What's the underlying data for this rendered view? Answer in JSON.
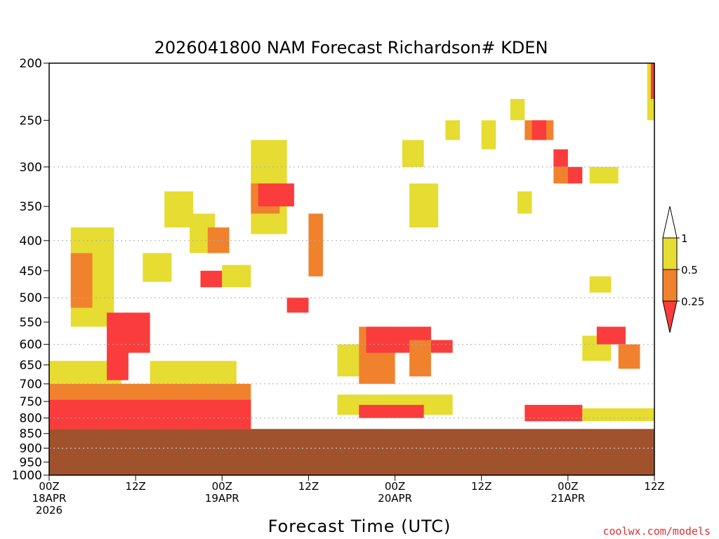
{
  "chart_data": {
    "type": "heatmap",
    "title": "2026041800 NAM Forecast Richardson# KDEN",
    "xlabel": "Forecast Time (UTC)",
    "ylabel": "",
    "y_scale": "log-pressure",
    "y_inverted": true,
    "ylim": [
      1000,
      200
    ],
    "xlim_hours": [
      0,
      84
    ],
    "grid": "dotted horizontal at 300, 400, 500, 600, 700, 800, 900, 1000",
    "legend_placement": "right",
    "credit": "coolwx.com/models",
    "y_ticks": [
      "200",
      "250",
      "300",
      "350",
      "400",
      "450",
      "500",
      "550",
      "600",
      "650",
      "700",
      "750",
      "800",
      "850",
      "900",
      "950",
      "1000"
    ],
    "x_ticks": [
      {
        "hour": 0,
        "lines": [
          "00Z",
          "18APR",
          "2026"
        ]
      },
      {
        "hour": 12,
        "lines": [
          "12Z"
        ]
      },
      {
        "hour": 24,
        "lines": [
          "00Z",
          "19APR"
        ]
      },
      {
        "hour": 36,
        "lines": [
          "12Z"
        ]
      },
      {
        "hour": 48,
        "lines": [
          "00Z",
          "20APR"
        ]
      },
      {
        "hour": 60,
        "lines": [
          "12Z"
        ]
      },
      {
        "hour": 72,
        "lines": [
          "00Z",
          "21APR"
        ]
      },
      {
        "hour": 84,
        "lines": [
          "12Z"
        ]
      }
    ],
    "legend": {
      "levels": [
        "1",
        "0.5",
        "0.25"
      ],
      "bins": [
        {
          "range": "0.5-1",
          "color": "#e6dc32"
        },
        {
          "range": "0.25-0.5",
          "color": "#f0822d"
        },
        {
          "range": "<0.25",
          "color": "#fa3c3c"
        }
      ]
    },
    "colors": {
      "ri_05_1": "#e6dc32",
      "ri_025_05": "#f0822d",
      "ri_lt_025": "#fa3c3c",
      "terrain": "#a0522d"
    },
    "terrain_top_hpa": 835,
    "regions": [
      {
        "h0": 3,
        "h1": 9,
        "p0": 380,
        "p1": 560,
        "cls": "y"
      },
      {
        "h0": 3,
        "h1": 6,
        "p0": 420,
        "p1": 520,
        "cls": "o"
      },
      {
        "h0": 8,
        "h1": 11,
        "p0": 530,
        "p1": 690,
        "cls": "r"
      },
      {
        "h0": 10.5,
        "h1": 14,
        "p0": 530,
        "p1": 620,
        "cls": "r"
      },
      {
        "h0": 13,
        "h1": 17,
        "p0": 420,
        "p1": 470,
        "cls": "y"
      },
      {
        "h0": 16,
        "h1": 20,
        "p0": 330,
        "p1": 380,
        "cls": "y"
      },
      {
        "h0": 19.5,
        "h1": 23,
        "p0": 360,
        "p1": 420,
        "cls": "y"
      },
      {
        "h0": 22,
        "h1": 25,
        "p0": 380,
        "p1": 420,
        "cls": "o"
      },
      {
        "h0": 21,
        "h1": 24,
        "p0": 450,
        "p1": 480,
        "cls": "r"
      },
      {
        "h0": 24,
        "h1": 28,
        "p0": 440,
        "p1": 480,
        "cls": "y"
      },
      {
        "h0": 28,
        "h1": 33,
        "p0": 270,
        "p1": 390,
        "cls": "y"
      },
      {
        "h0": 28,
        "h1": 32,
        "p0": 320,
        "p1": 360,
        "cls": "o"
      },
      {
        "h0": 29,
        "h1": 34,
        "p0": 320,
        "p1": 350,
        "cls": "r"
      },
      {
        "h0": 33,
        "h1": 36,
        "p0": 500,
        "p1": 530,
        "cls": "r"
      },
      {
        "h0": 36,
        "h1": 38,
        "p0": 360,
        "p1": 460,
        "cls": "o"
      },
      {
        "h0": 40,
        "h1": 44,
        "p0": 600,
        "p1": 680,
        "cls": "y"
      },
      {
        "h0": 43,
        "h1": 48,
        "p0": 560,
        "p1": 700,
        "cls": "o"
      },
      {
        "h0": 44,
        "h1": 53,
        "p0": 560,
        "p1": 620,
        "cls": "r"
      },
      {
        "h0": 50,
        "h1": 53,
        "p0": 590,
        "p1": 680,
        "cls": "o"
      },
      {
        "h0": 49,
        "h1": 52,
        "p0": 270,
        "p1": 300,
        "cls": "y"
      },
      {
        "h0": 50,
        "h1": 54,
        "p0": 320,
        "p1": 380,
        "cls": "y"
      },
      {
        "h0": 53,
        "h1": 56,
        "p0": 590,
        "p1": 620,
        "cls": "r"
      },
      {
        "h0": 55,
        "h1": 57,
        "p0": 250,
        "p1": 270,
        "cls": "y"
      },
      {
        "h0": 60,
        "h1": 62,
        "p0": 250,
        "p1": 280,
        "cls": "y"
      },
      {
        "h0": 64,
        "h1": 66,
        "p0": 230,
        "p1": 250,
        "cls": "y"
      },
      {
        "h0": 65,
        "h1": 67,
        "p0": 330,
        "p1": 360,
        "cls": "y"
      },
      {
        "h0": 66,
        "h1": 70,
        "p0": 250,
        "p1": 270,
        "cls": "o"
      },
      {
        "h0": 67,
        "h1": 69,
        "p0": 250,
        "p1": 270,
        "cls": "r"
      },
      {
        "h0": 70,
        "h1": 72,
        "p0": 280,
        "p1": 300,
        "cls": "r"
      },
      {
        "h0": 70,
        "h1": 73,
        "p0": 300,
        "p1": 320,
        "cls": "o"
      },
      {
        "h0": 72,
        "h1": 74,
        "p0": 300,
        "p1": 320,
        "cls": "r"
      },
      {
        "h0": 75,
        "h1": 79,
        "p0": 300,
        "p1": 320,
        "cls": "y"
      },
      {
        "h0": 75,
        "h1": 78,
        "p0": 460,
        "p1": 490,
        "cls": "y"
      },
      {
        "h0": 74,
        "h1": 78,
        "p0": 580,
        "p1": 640,
        "cls": "y"
      },
      {
        "h0": 76,
        "h1": 80,
        "p0": 560,
        "p1": 600,
        "cls": "r"
      },
      {
        "h0": 79,
        "h1": 82,
        "p0": 600,
        "p1": 660,
        "cls": "o"
      },
      {
        "h0": 83,
        "h1": 84,
        "p0": 200,
        "p1": 250,
        "cls": "y"
      },
      {
        "h0": 83.5,
        "h1": 84,
        "p0": 200,
        "p1": 230,
        "cls": "r"
      }
    ],
    "bands": [
      {
        "h0": 0,
        "h1": 28,
        "p0": 700,
        "p1": 835,
        "cls": "o"
      },
      {
        "h0": 0,
        "h1": 28,
        "p0": 745,
        "p1": 835,
        "cls": "r"
      },
      {
        "h0": 0,
        "h1": 10,
        "p0": 640,
        "p1": 700,
        "cls": "y"
      },
      {
        "h0": 14,
        "h1": 26,
        "p0": 640,
        "p1": 700,
        "cls": "y"
      },
      {
        "h0": 40,
        "h1": 56,
        "p0": 730,
        "p1": 790,
        "cls": "y"
      },
      {
        "h0": 43,
        "h1": 52,
        "p0": 760,
        "p1": 800,
        "cls": "r"
      },
      {
        "h0": 66,
        "h1": 74,
        "p0": 760,
        "p1": 810,
        "cls": "r"
      },
      {
        "h0": 74,
        "h1": 84,
        "p0": 770,
        "p1": 810,
        "cls": "y"
      }
    ]
  }
}
